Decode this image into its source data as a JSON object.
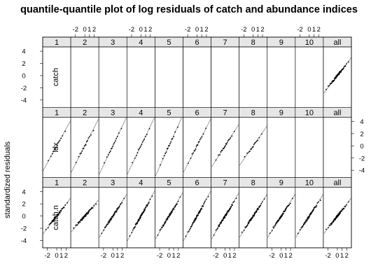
{
  "chart_data": {
    "type": "scatter",
    "title": "quantile-quantile plot of log residuals of catch and abundance indices",
    "ylabel": "standardized residuals",
    "xlabel": "",
    "columns": [
      "1",
      "2",
      "3",
      "4",
      "5",
      "6",
      "7",
      "8",
      "9",
      "10",
      "all"
    ],
    "rows": [
      "catch",
      "idx",
      "catch.n"
    ],
    "x_tick_labels": [
      "-2",
      "0",
      "1",
      "2"
    ],
    "x_ticks": [
      -2,
      0,
      1,
      2
    ],
    "x_range": [
      -3.0,
      3.0
    ],
    "y_tick_labels": [
      "4",
      "2",
      "0",
      "-2",
      "-4"
    ],
    "y_ticks": [
      4,
      2,
      0,
      -2,
      -4
    ],
    "y_range": [
      -5.2,
      4.7
    ],
    "panel_points": {
      "catch": {
        "all": 60
      },
      "idx": {
        "1": 14,
        "2": 16,
        "3": 15,
        "4": 15,
        "5": 16,
        "6": 17,
        "7": 20,
        "8": 15
      },
      "catch.n": {
        "1": 45,
        "2": 60,
        "3": 60,
        "4": 60,
        "5": 60,
        "6": 60,
        "7": 60,
        "8": 60,
        "9": 60,
        "10": 60,
        "all": 60
      }
    },
    "line_slope": {
      "catch": {
        "all": 1.0
      },
      "idx": {
        "1": 1.4,
        "2": 1.5,
        "3": 1.6,
        "4": 1.6,
        "5": 1.7,
        "6": 1.5,
        "7": 1.2,
        "8": 1.1
      },
      "catch.n": {
        "1": 1.0,
        "2": 0.9,
        "3": 1.2,
        "4": 1.4,
        "5": 1.3,
        "6": 1.4,
        "7": 1.3,
        "8": 1.2,
        "9": 1.2,
        "10": 1.2,
        "all": 1.0
      }
    },
    "grid": false,
    "legend": "none"
  }
}
